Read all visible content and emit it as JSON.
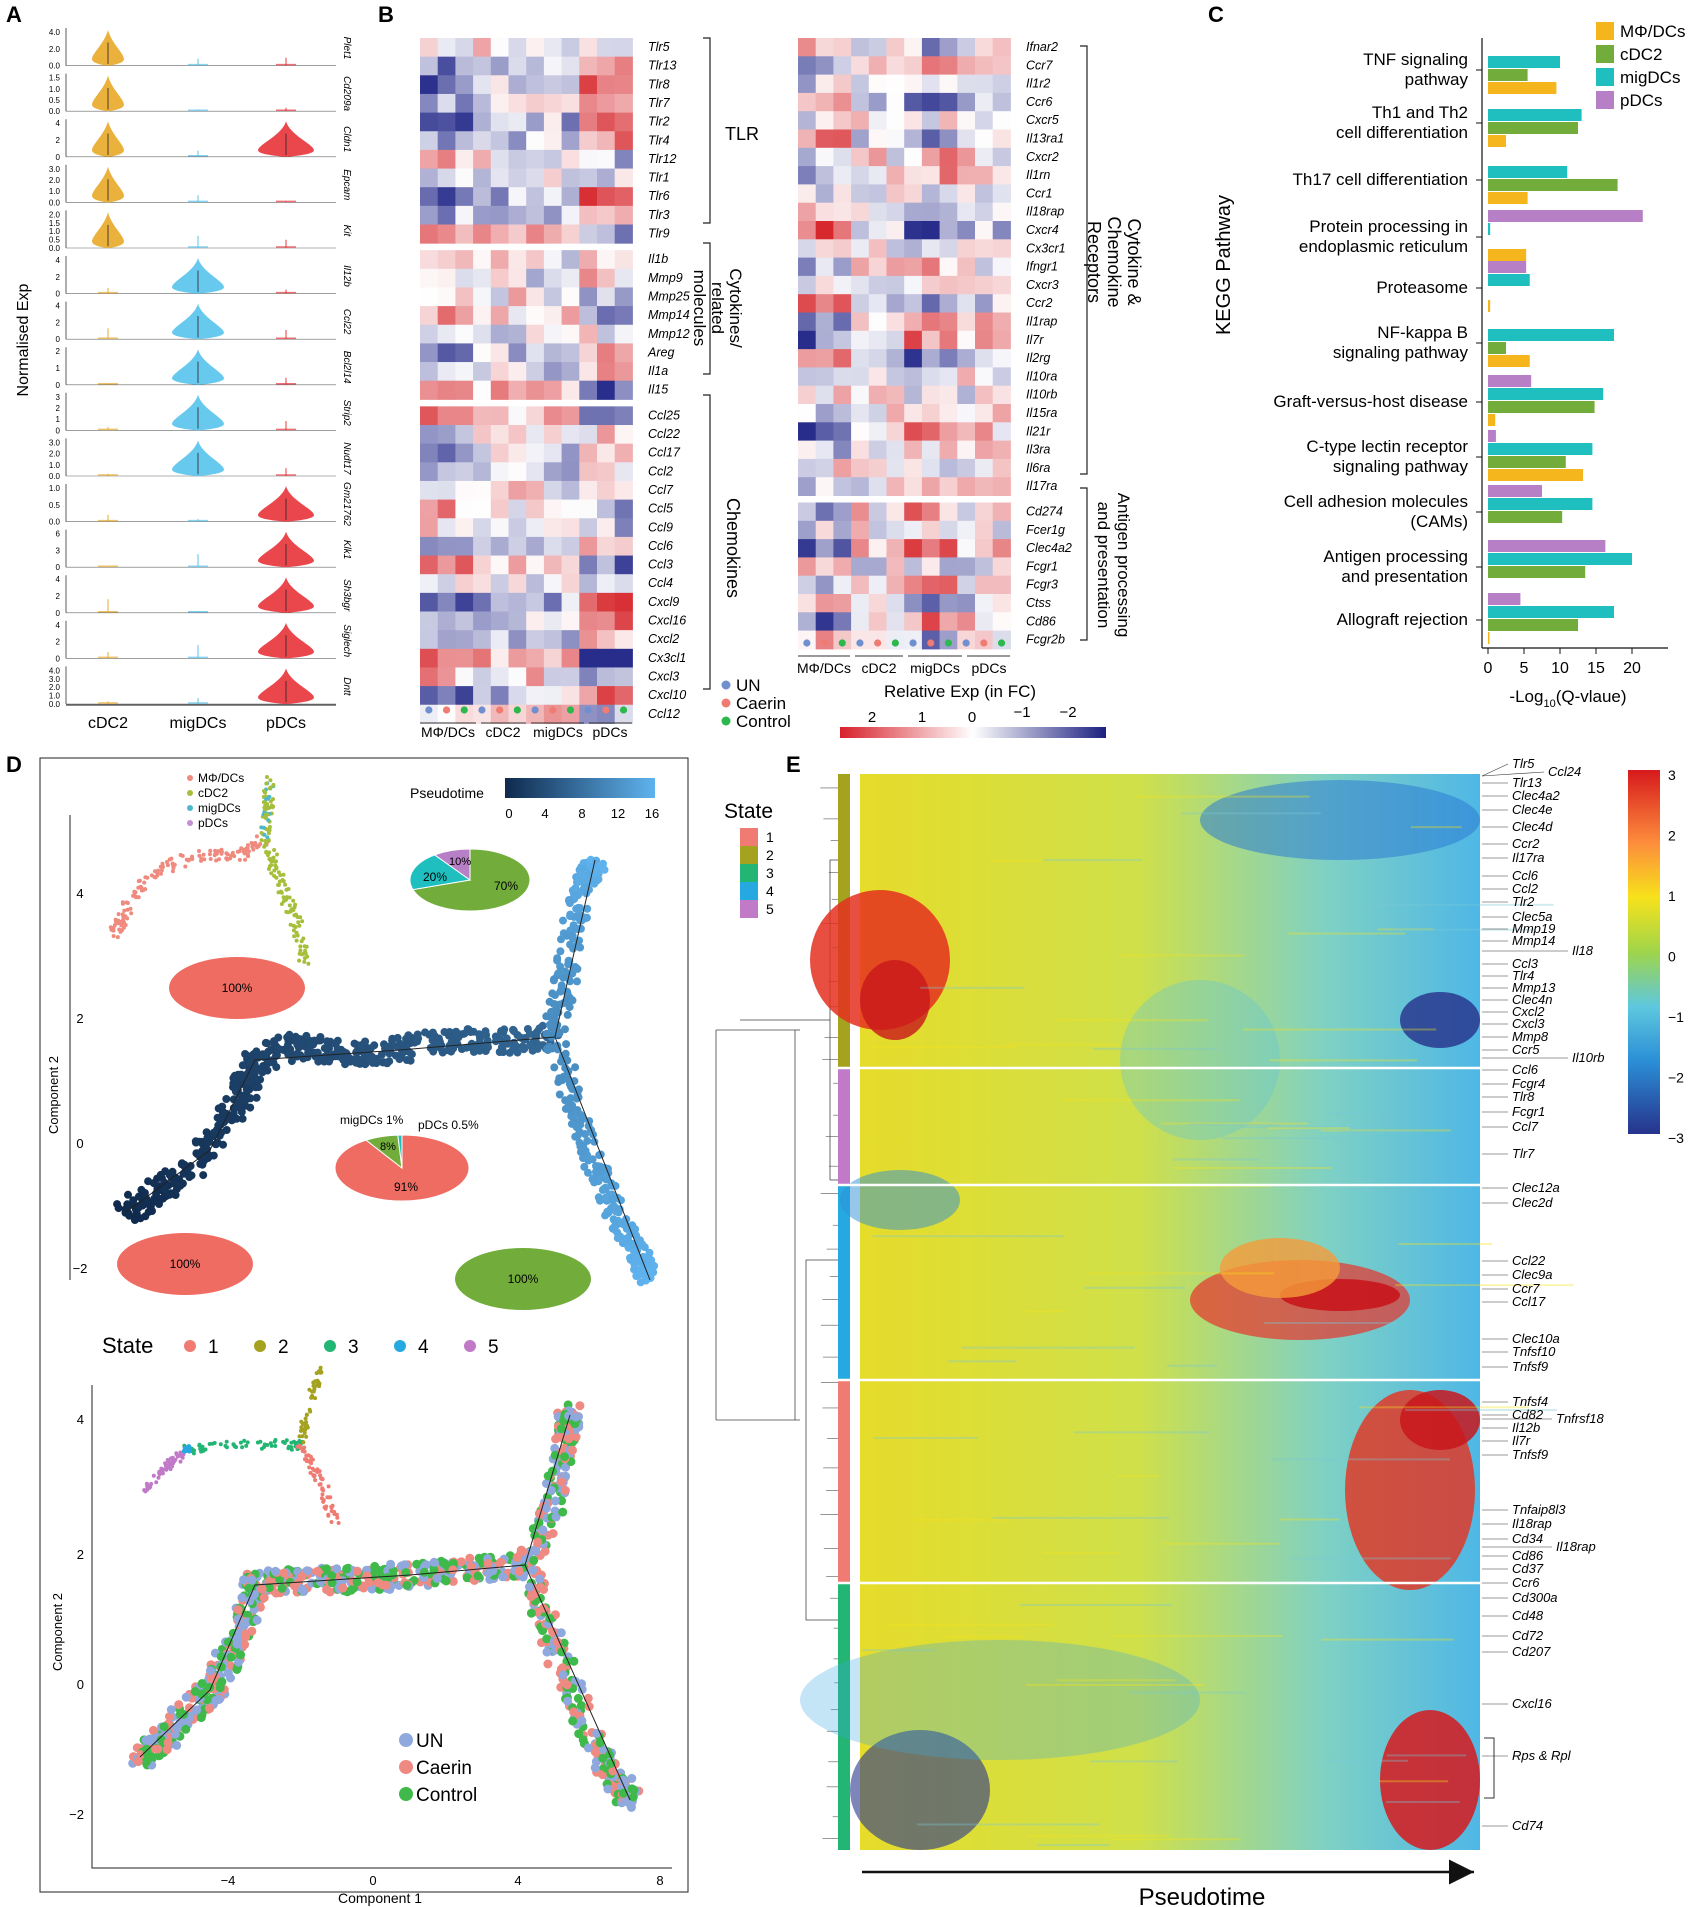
{
  "panels": {
    "A": "A",
    "B": "B",
    "C": "C",
    "D": "D",
    "E": "E"
  },
  "panel_a": {
    "ylabel": "Normalised Exp",
    "genes": [
      "Plet1",
      "Cd209a",
      "Cldn1",
      "Epcam",
      "Kit",
      "Il12b",
      "Ccl22",
      "Bcl2l14",
      "Strip2",
      "Nudt17",
      "Gm21762",
      "Klk1",
      "Sh3bgr",
      "Siglech",
      "Dntt"
    ],
    "ticks": [
      [
        "4.0",
        "2.0",
        "0.0"
      ],
      [
        "1.5",
        "1.0",
        "0.5",
        "0.0"
      ],
      [
        "4",
        "2",
        "0"
      ],
      [
        "3.0",
        "2.0",
        "1.0",
        "0.0"
      ],
      [
        "2.0",
        "1.5",
        "1.0",
        "0.5",
        "0.0"
      ],
      [
        "4",
        "2",
        "0"
      ],
      [
        "4",
        "2",
        "0"
      ],
      [
        "2",
        "1",
        "0"
      ],
      [
        "3",
        "2",
        "1",
        "0"
      ],
      [
        "3.0",
        "2.0",
        "1.0",
        "0.0"
      ],
      [
        "1.0",
        "0.5",
        "0.0"
      ],
      [
        "6",
        "3",
        "0"
      ],
      [
        "4",
        "2",
        "0"
      ],
      [
        "4",
        "2",
        "0"
      ],
      [
        "4.0",
        "3.0",
        "2.0",
        "1.0",
        "0.0"
      ]
    ],
    "groups": [
      "cDC2",
      "migDCs",
      "pDCs"
    ],
    "colors": {
      "cDC2": "#e8a827",
      "migDCs": "#56c3ec",
      "pDCs": "#e8333a"
    }
  },
  "panel_b": {
    "left_genes": [
      "Tlr5",
      "Tlr13",
      "Tlr8",
      "Tlr7",
      "Tlr2",
      "Tlr4",
      "Tlr12",
      "Tlr1",
      "Tlr6",
      "Tlr3",
      "Tlr9",
      "Il1b",
      "Mmp9",
      "Mmp25",
      "Mmp14",
      "Mmp12",
      "Areg",
      "Il1a",
      "Il15",
      "Ccl25",
      "Ccl22",
      "Ccl17",
      "Ccl2",
      "Ccl7",
      "Ccl5",
      "Ccl9",
      "Ccl6",
      "Ccl3",
      "Ccl4",
      "Cxcl9",
      "Cxcl16",
      "Cxcl2",
      "Cx3cl1",
      "Cxcl3",
      "Cxcl10",
      "Ccl12"
    ],
    "right_genes": [
      "Ifnar2",
      "Ccr7",
      "Il1r2",
      "Ccr6",
      "Cxcr5",
      "Il13ra1",
      "Cxcr2",
      "Il1rn",
      "Ccr1",
      "Il18rap",
      "Cxcr4",
      "Cx3cr1",
      "Ifngr1",
      "Cxcr3",
      "Ccr2",
      "Il1rap",
      "Il7r",
      "Il2rg",
      "Il10ra",
      "Il10rb",
      "Il15ra",
      "Il21r",
      "Il3ra",
      "Il6ra",
      "Il17ra",
      "Cd274",
      "Fcer1g",
      "Clec4a2",
      "Fcgr1",
      "Fcgr3",
      "Ctss",
      "Cd86",
      "Fcgr2b"
    ],
    "cell_types": [
      "MΦ/DCs",
      "cDC2",
      "migDCs",
      "pDCs"
    ],
    "group_labels": {
      "tlr": "TLR",
      "cytokines": [
        "Cytokines/",
        "related",
        "molecules"
      ],
      "chemokines": "Chemokines",
      "receptors": [
        "Cytokine &",
        "Chemokine",
        "Receptors"
      ],
      "antigen": [
        "Antigen processing",
        "and presentation"
      ]
    },
    "treatment_legend": [
      {
        "label": "UN",
        "color": "#6f8fcf"
      },
      {
        "label": "Caerin",
        "color": "#ef7b72"
      },
      {
        "label": "Control",
        "color": "#2db84d"
      }
    ],
    "colorbar": {
      "title": "Relative Exp (in FC)",
      "ticks": [
        "2",
        "1",
        "0",
        "−1",
        "−2"
      ],
      "colors": [
        "#d7212b",
        "#ffffff",
        "#1c2080"
      ]
    }
  },
  "panel_c": {
    "ylabel": "KEGG Pathway",
    "xlabel": "-Log10(Q-vlaue)",
    "legend": [
      "MΦ/DCs",
      "cDC2",
      "migDCs",
      "pDCs"
    ],
    "pathway_lines": [
      [
        "TNF signaling",
        "pathway"
      ],
      [
        "Th1 and Th2",
        "cell differentiation"
      ],
      [
        "Th17 cell differentiation"
      ],
      [
        "Protein processing in",
        "endoplasmic reticulum"
      ],
      [
        "Proteasome"
      ],
      [
        "NF-kappa B",
        "signaling pathway"
      ],
      [
        "Graft-versus-host disease"
      ],
      [
        "C-type lectin receptor",
        "signaling pathway"
      ],
      [
        "Cell adhesion molecules",
        "(CAMs)"
      ],
      [
        "Antigen processing",
        "and presentation"
      ],
      [
        "Allograft rejection"
      ]
    ]
  },
  "chart_data": {
    "type": "bar",
    "orientation": "horizontal",
    "title": "",
    "xlabel": "-Log10(Q-vlaue)",
    "ylabel": "KEGG Pathway",
    "xlim": [
      0,
      22
    ],
    "xticks": [
      "0",
      "5",
      "10",
      "15",
      "20"
    ],
    "categories": [
      "TNF signaling pathway",
      "Th1 and Th2 cell differentiation",
      "Th17 cell differentiation",
      "Protein processing in endoplasmic reticulum",
      "Proteasome",
      "NF-kappa B signaling pathway",
      "Graft-versus-host disease",
      "C-type lectin receptor signaling pathway",
      "Cell adhesion molecules (CAMs)",
      "Antigen processing and presentation",
      "Allograft rejection"
    ],
    "series": [
      {
        "name": "pDCs",
        "color": "#b67fc6",
        "values": [
          0,
          0,
          0,
          21.5,
          5.3,
          0,
          6,
          1.1,
          7.5,
          16.3,
          4.5
        ]
      },
      {
        "name": "migDCs",
        "color": "#1fbfbf",
        "values": [
          10,
          13,
          11,
          0.3,
          5.8,
          17.5,
          16,
          14.5,
          14.5,
          20,
          17.5
        ]
      },
      {
        "name": "cDC2",
        "color": "#72ad3b",
        "values": [
          5.5,
          12.5,
          18,
          0,
          0,
          2.5,
          14.8,
          10.8,
          10.3,
          13.5,
          12.5
        ]
      },
      {
        "name": "MΦ/DCs",
        "color": "#f5b51d",
        "values": [
          9.5,
          2.5,
          5.5,
          5.3,
          0.3,
          5.8,
          1,
          13.2,
          0,
          0,
          0.2
        ]
      }
    ]
  },
  "panel_d": {
    "pseudotime_title": "Pseudotime",
    "pseudotime_ticks": [
      "0",
      "4",
      "8",
      "12",
      "16"
    ],
    "inset_legend": [
      {
        "label": "MΦ/DCs",
        "color": "#ef8a7e"
      },
      {
        "label": "cDC2",
        "color": "#a6bf3a"
      },
      {
        "label": "migDCs",
        "color": "#4fb8c8"
      },
      {
        "label": "pDCs",
        "color": "#c38fd6"
      }
    ],
    "pie_top": {
      "labels": [
        "70%",
        "20%",
        "10%"
      ]
    },
    "pie_mid": {
      "labels": [
        "91%",
        "8%"
      ],
      "notes": [
        "migDCs 1%",
        "pDCs 0.5%"
      ]
    },
    "ellipse_labels": [
      "100%",
      "100%",
      "100%"
    ],
    "ylabel": "Component 2",
    "yticks": [
      "4",
      "2",
      "0",
      "−2"
    ],
    "state_title": "State",
    "states": [
      {
        "label": "1",
        "color": "#ef7b72"
      },
      {
        "label": "2",
        "color": "#a4a21f"
      },
      {
        "label": "3",
        "color": "#23b573"
      },
      {
        "label": "4",
        "color": "#26a9e1"
      },
      {
        "label": "5",
        "color": "#c07ac8"
      }
    ],
    "bottom_ylabel": "Component 2",
    "bottom_yticks": [
      "4",
      "2",
      "0",
      "−2"
    ],
    "bottom_xticks": [
      "−4",
      "0",
      "4",
      "8"
    ],
    "bottom_xlabel": "Component 1",
    "bottom_legend": [
      {
        "label": "UN",
        "color": "#8fa9de"
      },
      {
        "label": "Caerin",
        "color": "#ef8a82"
      },
      {
        "label": "Control",
        "color": "#3fba4a"
      }
    ]
  },
  "panel_e": {
    "legend_title": "State",
    "legend_states": [
      "1",
      "2",
      "3",
      "4",
      "5"
    ],
    "x_label": "Pseudotime",
    "colorbar_ticks": [
      "3",
      "2",
      "1",
      "0",
      "−1",
      "−2",
      "−3"
    ],
    "genes": [
      "Tlr5",
      "Ccl24",
      "Tlr13",
      "Clec4a2",
      "Clec4e",
      "Clec4d",
      "Ccr2",
      "Il17ra",
      "Ccl6",
      "Ccl2",
      "Tlr2",
      "Clec5a",
      "Mmp19",
      "Mmp14",
      "Il18",
      "Ccl3",
      "Tlr4",
      "Mmp13",
      "Clec4n",
      "Cxcl2",
      "Cxcl3",
      "Mmp8",
      "Ccr5",
      "Il10rb",
      "Ccl6",
      "Fcgr4",
      "Tlr8",
      "Fcgr1",
      "Ccl7",
      "Tlr7",
      "Clec12a",
      "Clec2d",
      "Ccl22",
      "Clec9a",
      "Ccr7",
      "Ccl17",
      "Clec10a",
      "Tnfsf10",
      "Tnfsf9",
      "Tnfsf4",
      "Cd82",
      "Tnfrsf18",
      "Il12b",
      "Il7r",
      "Tnfsf9",
      "Tnfaip8l3",
      "Il18rap",
      "Cd34",
      "Il18rap",
      "Cd86",
      "Cd37",
      "Ccr6",
      "Cd300a",
      "Cd48",
      "Cd72",
      "Cd207",
      "Cxcl16",
      "Rps & Rpl",
      "Cd74"
    ]
  }
}
